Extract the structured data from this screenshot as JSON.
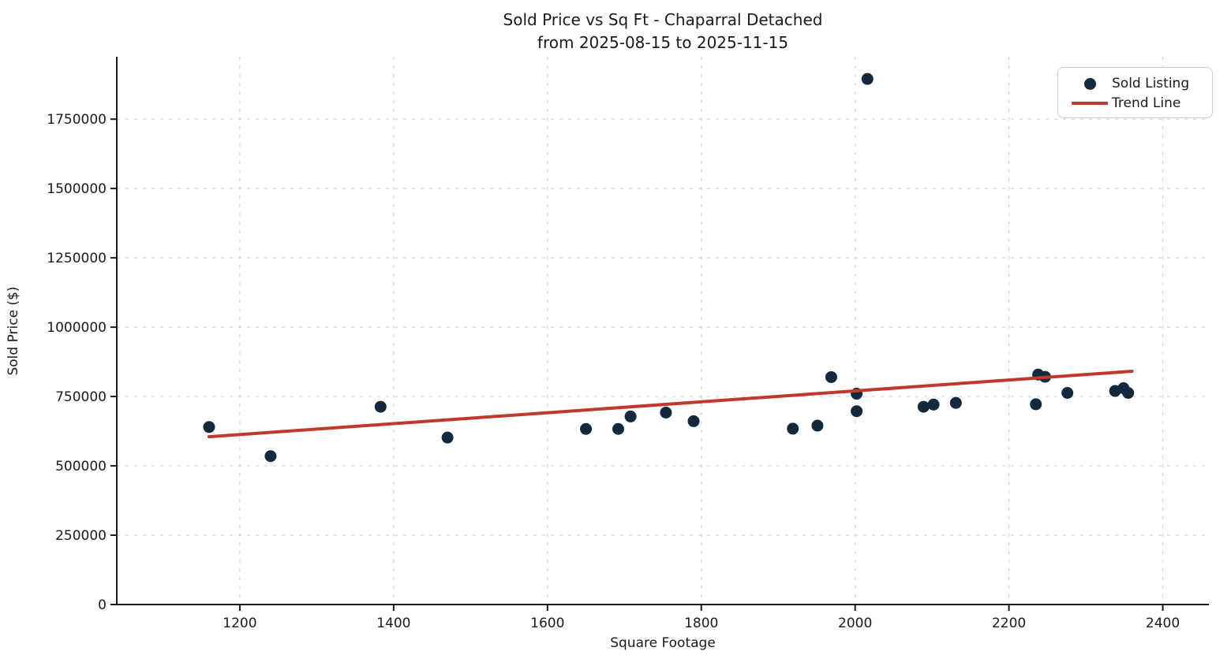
{
  "chart_data": {
    "type": "scatter",
    "title": "Sold Price vs Sq Ft - Chaparral Detached",
    "subtitle": "from 2025-08-15 to 2025-11-15",
    "xlabel": "Square Footage",
    "ylabel": "Sold Price ($)",
    "xlim": [
      1040,
      2460
    ],
    "ylim": [
      0,
      1975000
    ],
    "xticks": [
      1200,
      1400,
      1600,
      1800,
      2000,
      2200,
      2400
    ],
    "yticks": [
      0,
      250000,
      500000,
      750000,
      1000000,
      1250000,
      1500000,
      1750000
    ],
    "grid": true,
    "grid_style": "dashed",
    "legend": {
      "position": "upper right",
      "entries": [
        {
          "label": "Sold Listing",
          "marker": "circle",
          "color": "#12293E"
        },
        {
          "label": "Trend Line",
          "marker": "line",
          "color": "#C0392B"
        }
      ]
    },
    "series": [
      {
        "name": "Sold Listing",
        "type": "scatter",
        "color": "#12293E",
        "marker_radius": 7.5,
        "points": [
          [
            1160,
            640000
          ],
          [
            1240,
            535000
          ],
          [
            1383,
            713000
          ],
          [
            1470,
            602000
          ],
          [
            1650,
            633000
          ],
          [
            1692,
            633000
          ],
          [
            1708,
            678000
          ],
          [
            1754,
            692000
          ],
          [
            1790,
            661000
          ],
          [
            1919,
            634000
          ],
          [
            1951,
            645000
          ],
          [
            1969,
            820000
          ],
          [
            2002,
            760000
          ],
          [
            2002,
            697000
          ],
          [
            2016,
            1895000
          ],
          [
            2089,
            713000
          ],
          [
            2102,
            721000
          ],
          [
            2131,
            727000
          ],
          [
            2235,
            722000
          ],
          [
            2238,
            829000
          ],
          [
            2247,
            821000
          ],
          [
            2276,
            763000
          ],
          [
            2338,
            770000
          ],
          [
            2349,
            780000
          ],
          [
            2355,
            763000
          ]
        ]
      },
      {
        "name": "Trend Line",
        "type": "line",
        "color": "#C0392B",
        "line_width": 4,
        "points": [
          [
            1160,
            605000
          ],
          [
            2360,
            841000
          ]
        ]
      }
    ],
    "style": {
      "grid_color": "#d4d4d4",
      "spine_color": "#1a1a1a",
      "tick_label_color": "#1a1a1a",
      "background": "#ffffff"
    }
  }
}
